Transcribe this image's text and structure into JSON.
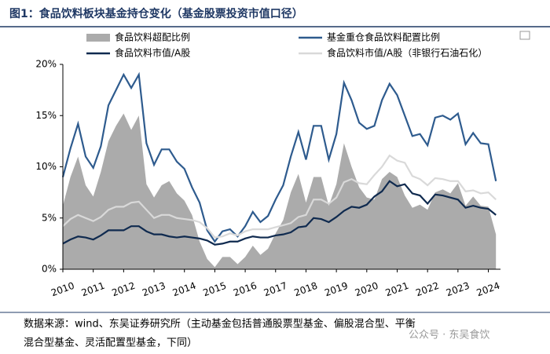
{
  "chart_data": {
    "type": "line",
    "title": "图1：食品饮料板块基金持仓变化（基金股票投资市值口径）",
    "x": [
      2010,
      2010.25,
      2010.5,
      2010.75,
      2011,
      2011.25,
      2011.5,
      2011.75,
      2012,
      2012.25,
      2012.5,
      2012.75,
      2013,
      2013.25,
      2013.5,
      2013.75,
      2014,
      2014.25,
      2014.5,
      2014.75,
      2015,
      2015.25,
      2015.5,
      2015.75,
      2016,
      2016.25,
      2016.5,
      2016.75,
      2017,
      2017.25,
      2017.5,
      2017.75,
      2018,
      2018.25,
      2018.5,
      2018.75,
      2019,
      2019.25,
      2019.5,
      2019.75,
      2020,
      2020.25,
      2020.5,
      2020.75,
      2021,
      2021.25,
      2021.5,
      2021.75,
      2022,
      2022.25,
      2022.5,
      2022.75,
      2023,
      2023.25,
      2023.5,
      2023.75,
      2024,
      2024.25
    ],
    "xlim": [
      2010,
      2024.4
    ],
    "xticks": [
      2010,
      2011,
      2012,
      2013,
      2014,
      2015,
      2016,
      2017,
      2018,
      2019,
      2020,
      2021,
      2022,
      2023,
      2024
    ],
    "ylim": [
      0,
      20
    ],
    "yticks": [
      {
        "value": 0,
        "label": "0%"
      },
      {
        "value": 5,
        "label": "5%"
      },
      {
        "value": 10,
        "label": "10%"
      },
      {
        "value": 15,
        "label": "15%"
      },
      {
        "value": 20,
        "label": "20%"
      }
    ],
    "series": [
      {
        "name": "食品饮料超配比例",
        "kind": "area",
        "color": "#ababab",
        "values": [
          6.2,
          9,
          11,
          8.2,
          7.1,
          9.5,
          12.5,
          14,
          15.2,
          13.6,
          15,
          8.3,
          7,
          8.2,
          8.6,
          7.4,
          6.7,
          5.3,
          2.7,
          1,
          0.2,
          1.2,
          1.2,
          0.5,
          1.2,
          2.3,
          1.4,
          2,
          3.5,
          4.8,
          7.5,
          9.3,
          6.5,
          9,
          9,
          6.2,
          8.3,
          12.3,
          10,
          8,
          7,
          6.8,
          8.8,
          9.5,
          9,
          7.2,
          6,
          6.3,
          5.8,
          7.5,
          7.8,
          7.4,
          8.4,
          6.2,
          7.1,
          6.2,
          6.1,
          3.4
        ]
      },
      {
        "name": "基金重仓食品饮料配置比例",
        "kind": "line",
        "color": "#2e5b8e",
        "values": [
          9,
          11.8,
          14.2,
          11,
          9.9,
          12,
          16,
          17.5,
          19,
          17.7,
          19,
          12.3,
          10.2,
          11.7,
          11.7,
          10.5,
          9.8,
          8,
          6.5,
          3.8,
          2.7,
          3.7,
          3.9,
          3.2,
          4.2,
          5.6,
          4.6,
          5.2,
          6.8,
          8.2,
          11,
          13.4,
          10.7,
          14,
          14,
          10.7,
          13.2,
          18.2,
          16.5,
          14.3,
          13.7,
          14,
          16.5,
          18.1,
          17,
          15,
          13,
          13.2,
          12.1,
          14.8,
          15,
          14.6,
          15.2,
          12.2,
          13.3,
          12.3,
          12.2,
          8.6
        ]
      },
      {
        "name": "食品饮料市值/A股",
        "kind": "line",
        "color": "#0f2a4f",
        "values": [
          2.5,
          2.9,
          3.2,
          3.1,
          2.9,
          3.3,
          3.8,
          3.8,
          3.8,
          4.2,
          4.2,
          3.7,
          3.4,
          3.4,
          3.2,
          3.1,
          3.2,
          3.1,
          3.0,
          2.8,
          2.4,
          2.5,
          2.7,
          2.7,
          3.0,
          3.2,
          3.1,
          3.1,
          3.3,
          3.4,
          3.6,
          4.1,
          4.2,
          5.0,
          4.9,
          4.6,
          5.1,
          5.7,
          6.1,
          6.0,
          6.3,
          7.1,
          7.6,
          8.6,
          8.1,
          8.3,
          7.4,
          7.2,
          6.4,
          7.3,
          7.2,
          7.0,
          6.8,
          6.0,
          6.2,
          6.0,
          5.9,
          5.3
        ]
      },
      {
        "name": "食品饮料市值/A股（非银行石油石化）",
        "kind": "line",
        "color": "#d9d9d9",
        "values": [
          4.2,
          4.9,
          5.3,
          5.0,
          4.7,
          5.1,
          5.8,
          6.1,
          6.1,
          6.5,
          6.6,
          5.8,
          5.0,
          5.3,
          5.3,
          5.0,
          4.9,
          4.8,
          4.6,
          4.0,
          3.1,
          3.2,
          3.5,
          3.3,
          3.7,
          3.9,
          3.9,
          3.9,
          4.1,
          4.3,
          4.5,
          5.1,
          5.3,
          6.8,
          6.8,
          6.4,
          7.0,
          8.5,
          8.8,
          8.4,
          8.3,
          9.2,
          10.0,
          11.1,
          10.6,
          10.4,
          9.1,
          8.8,
          8.2,
          8.9,
          8.8,
          8.6,
          8.6,
          7.6,
          7.7,
          7.4,
          7.5,
          6.8
        ]
      }
    ]
  },
  "footer": {
    "source": [
      "数据来源：wind、东吴证券研究所（主动基金包括普通股票型基金、偏股混合型、平衡",
      "混合型基金、灵活配置型基金，下同）"
    ],
    "watermark": "公众号 · 东吴食饮"
  }
}
